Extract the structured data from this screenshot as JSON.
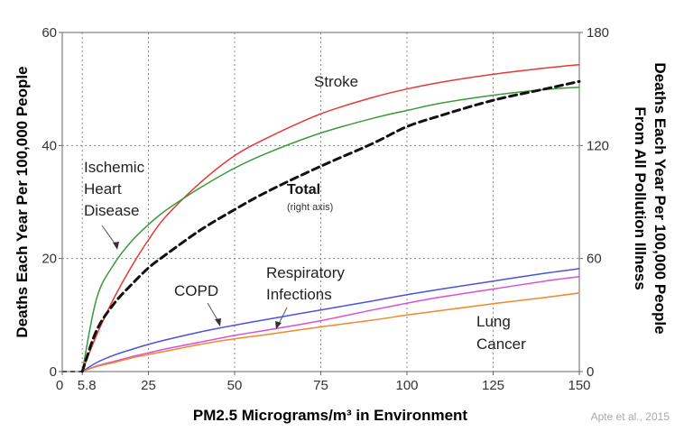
{
  "chart_data": {
    "type": "line",
    "xlabel": "PM2.5 Micrograms/m³ in Environment",
    "ylabel_left": "Deaths Each Year Per 100,000 People",
    "ylabel_right_line1": "Deaths Each Year Per 100,000 People",
    "ylabel_right_line2": "From All Pollution Illness",
    "xlim": [
      0,
      150
    ],
    "ylim_left": [
      0,
      60
    ],
    "ylim_right": [
      0,
      180
    ],
    "x_ticks": [
      "0",
      "5.8",
      "25",
      "50",
      "75",
      "100",
      "125",
      "150"
    ],
    "x_tick_values": [
      0,
      5.8,
      25,
      50,
      75,
      100,
      125,
      150
    ],
    "y_left_ticks": [
      "0",
      "20",
      "40",
      "60"
    ],
    "y_left_tick_values": [
      0,
      20,
      40,
      60
    ],
    "y_right_ticks": [
      "0",
      "60",
      "120",
      "180"
    ],
    "y_right_tick_values": [
      0,
      60,
      120,
      180
    ],
    "grid": "dotted at labeled ticks",
    "x": [
      0,
      5.8,
      10,
      15,
      20,
      25,
      30,
      40,
      50,
      60,
      75,
      90,
      100,
      110,
      125,
      140,
      150
    ],
    "series": [
      {
        "color": "#e53935",
        "axis": "left",
        "values": [
          0,
          0,
          6.5,
          13,
          18.5,
          23.3,
          27.4,
          33.4,
          38.2,
          41.5,
          45.6,
          48.5,
          50.0,
          51.2,
          52.6,
          53.7,
          54.3
        ]
      },
      {
        "color": "#3a9a3a",
        "axis": "left",
        "values": [
          0,
          0,
          13.0,
          19.0,
          23.0,
          26.0,
          28.5,
          32.5,
          36.0,
          38.8,
          42.2,
          44.8,
          46.2,
          47.5,
          48.9,
          49.9,
          50.3
        ]
      },
      {
        "color": "#111111",
        "axis": "right",
        "dashed": true,
        "values": [
          0,
          0,
          22,
          36,
          46,
          55,
          62,
          75,
          86,
          96,
          109,
          121,
          130,
          136,
          144,
          150,
          154
        ]
      },
      {
        "color": "#4a52e0",
        "axis": "left",
        "values": [
          0,
          0,
          1.6,
          2.9,
          3.9,
          4.8,
          5.6,
          7.0,
          8.2,
          9.3,
          10.9,
          12.5,
          13.6,
          14.6,
          16.0,
          17.4,
          18.2
        ]
      },
      {
        "color": "#dd4fd0",
        "axis": "left",
        "values": [
          0,
          0,
          1.0,
          1.8,
          2.6,
          3.3,
          4.0,
          5.2,
          6.4,
          7.4,
          9.0,
          10.9,
          12.1,
          13.2,
          14.6,
          16.0,
          16.8
        ]
      },
      {
        "color": "#f0892a",
        "axis": "left",
        "values": [
          0,
          0,
          0.9,
          1.6,
          2.4,
          3.0,
          3.6,
          4.8,
          5.8,
          6.6,
          7.9,
          9.1,
          10.0,
          10.8,
          12.0,
          13.1,
          13.9
        ]
      }
    ],
    "annotations": {
      "stroke": "Stroke",
      "ihd_line1": "Ischemic",
      "ihd_line2": "Heart",
      "ihd_line3": "Disease",
      "total": "Total",
      "total_sub": "(right axis)",
      "copd": "COPD",
      "resp_line1": "Respiratory",
      "resp_line2": "Infections",
      "lung_line1": "Lung",
      "lung_line2": "Cancer"
    },
    "source": "Apte et al., 2015"
  }
}
